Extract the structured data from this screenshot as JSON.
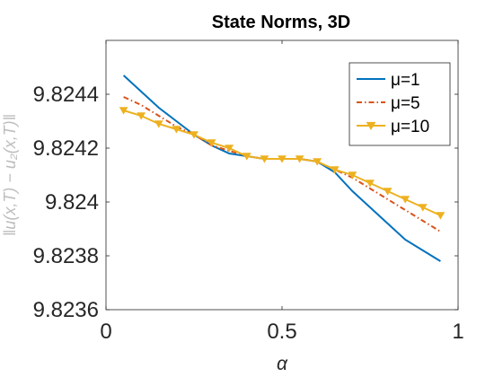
{
  "chart_data": {
    "type": "line",
    "title": "State Norms, 3D",
    "xlabel": "α",
    "ylabel": "‖u(x,T) − u₂(x,T)‖",
    "xlim": [
      0,
      1
    ],
    "ylim": [
      9.8236,
      9.8246
    ],
    "x_ticks": [
      0,
      0.5,
      1
    ],
    "x_tick_labels": [
      "0",
      "0.5",
      "1"
    ],
    "y_ticks": [
      9.8236,
      9.8238,
      9.824,
      9.8242,
      9.8244
    ],
    "y_tick_labels": [
      "9.8236",
      "9.8238",
      "9.824",
      "9.8242",
      "9.8244"
    ],
    "grid": false,
    "legend_position": "top-right",
    "x": [
      0.05,
      0.1,
      0.15,
      0.2,
      0.25,
      0.3,
      0.35,
      0.4,
      0.45,
      0.5,
      0.55,
      0.6,
      0.65,
      0.7,
      0.75,
      0.8,
      0.85,
      0.9,
      0.95
    ],
    "series": [
      {
        "name": "μ=1",
        "color": "#0072BD",
        "line_style": "solid",
        "marker": "none",
        "values": [
          9.82447,
          9.82441,
          9.82435,
          9.8243,
          9.82425,
          9.82421,
          9.82418,
          9.82417,
          9.82416,
          9.82416,
          9.82416,
          9.82415,
          9.82411,
          9.82404,
          9.82398,
          9.82392,
          9.82386,
          9.82382,
          9.82378
        ]
      },
      {
        "name": "μ=5",
        "color": "#D95319",
        "line_style": "dashdot",
        "marker": "none",
        "values": [
          9.82439,
          9.82436,
          9.82432,
          9.82428,
          9.82425,
          9.82421,
          9.82419,
          9.82417,
          9.82416,
          9.82416,
          9.82416,
          9.82415,
          9.82412,
          9.82409,
          9.82405,
          9.82401,
          9.82397,
          9.82393,
          9.82389
        ]
      },
      {
        "name": "μ=10",
        "color": "#EDB120",
        "line_style": "solid",
        "marker": "triangle-down",
        "values": [
          9.82434,
          9.82432,
          9.82429,
          9.82427,
          9.82425,
          9.82422,
          9.8242,
          9.82417,
          9.82416,
          9.82416,
          9.82416,
          9.82415,
          9.82412,
          9.8241,
          9.82407,
          9.82404,
          9.82401,
          9.82398,
          9.82395
        ]
      }
    ]
  }
}
